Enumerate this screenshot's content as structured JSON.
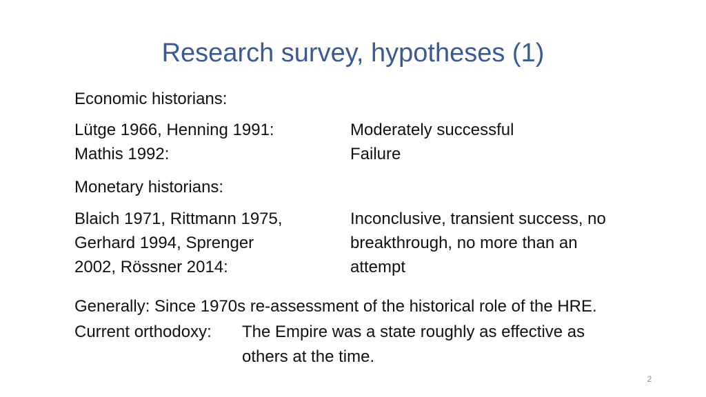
{
  "slide": {
    "title": "Research survey, hypotheses (1)",
    "economic": {
      "heading": "Economic historians:",
      "rows": [
        {
          "authors": "Lütge 1966, Henning 1991:",
          "verdict": "Moderately successful"
        },
        {
          "authors": "Mathis 1992:",
          "verdict": "Failure"
        }
      ]
    },
    "monetary": {
      "heading": "Monetary historians:",
      "authors_lines": [
        "Blaich 1971, Rittmann 1975,",
        "Gerhard 1994, Sprenger",
        "2002, Rössner 2014:"
      ],
      "verdict_lines": [
        "Inconclusive, transient success, no",
        "breakthrough, no more than an",
        "attempt"
      ]
    },
    "generally": "Generally: Since 1970s re-assessment of the historical role of the HRE.",
    "orthodoxy": {
      "label": "Current orthodoxy:",
      "text_lines": [
        "The Empire was a state roughly as effective as",
        "others at the time."
      ]
    },
    "page_number": "2"
  }
}
